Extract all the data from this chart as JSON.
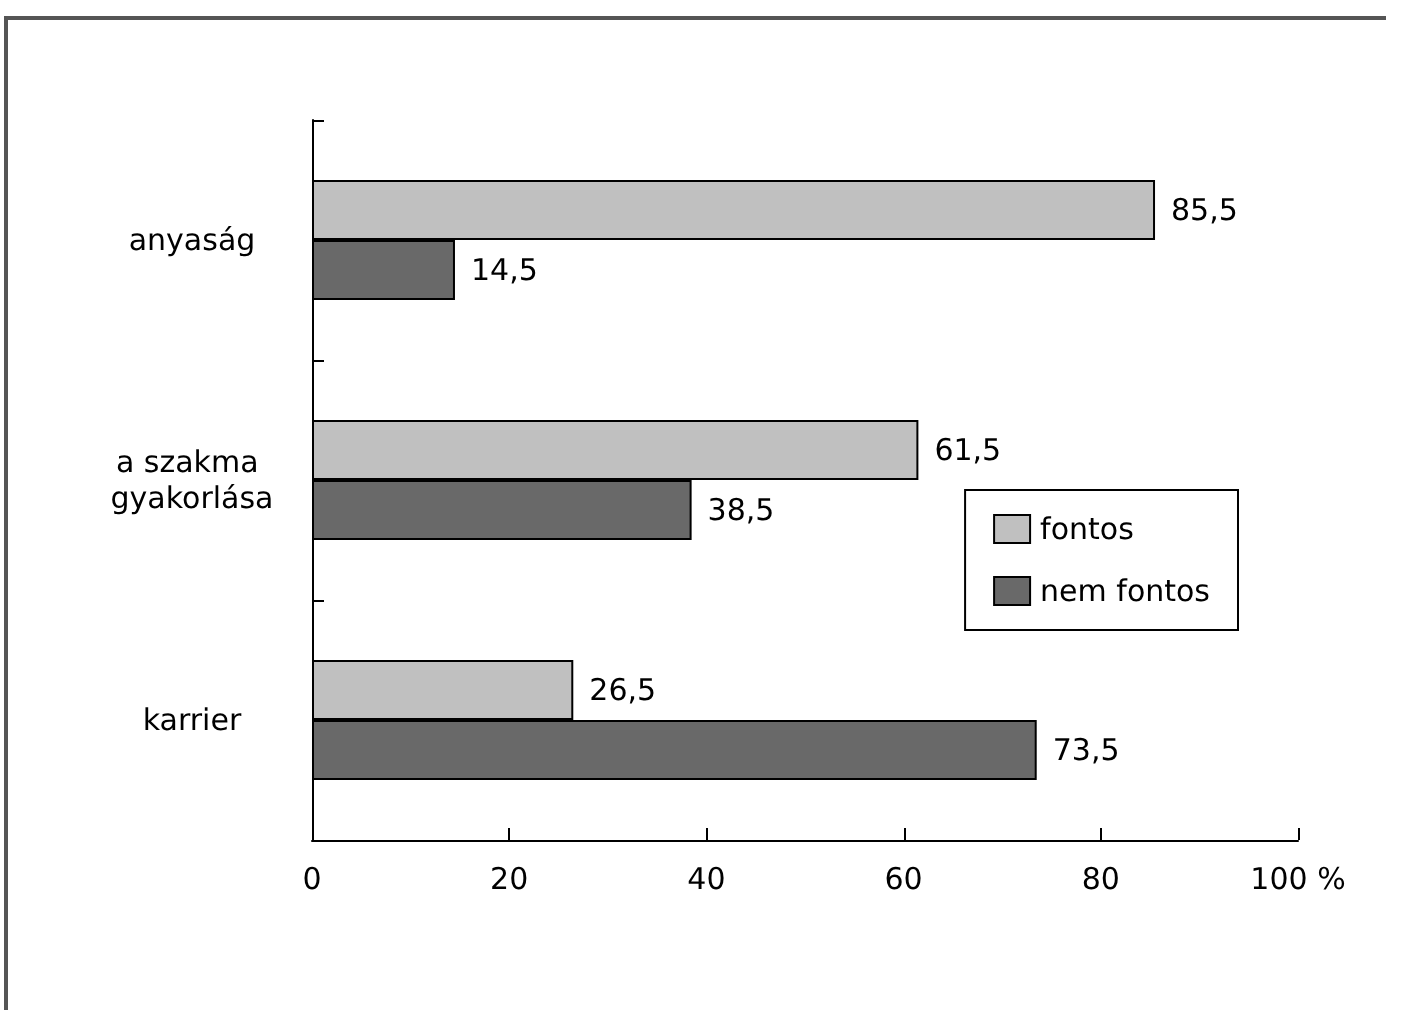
{
  "chart_data": {
    "type": "bar",
    "orientation": "horizontal",
    "categories": [
      "anyaság",
      "a szakma gyakorlása",
      "karrier"
    ],
    "series": [
      {
        "name": "fontos",
        "color": "#c0c0c0",
        "values": [
          85.5,
          61.5,
          26.5
        ],
        "value_labels": [
          "85,5",
          "61,5",
          "26,5"
        ]
      },
      {
        "name": "nem fontos",
        "color": "#696969",
        "values": [
          14.5,
          38.5,
          73.5
        ],
        "value_labels": [
          "14,5",
          "38,5",
          "73,5"
        ]
      }
    ],
    "xlim": [
      0,
      100
    ],
    "xticks": [
      0,
      20,
      40,
      60,
      80,
      {
        "value": 100,
        "label": "100 %"
      }
    ],
    "grid": false,
    "legend": "right"
  }
}
